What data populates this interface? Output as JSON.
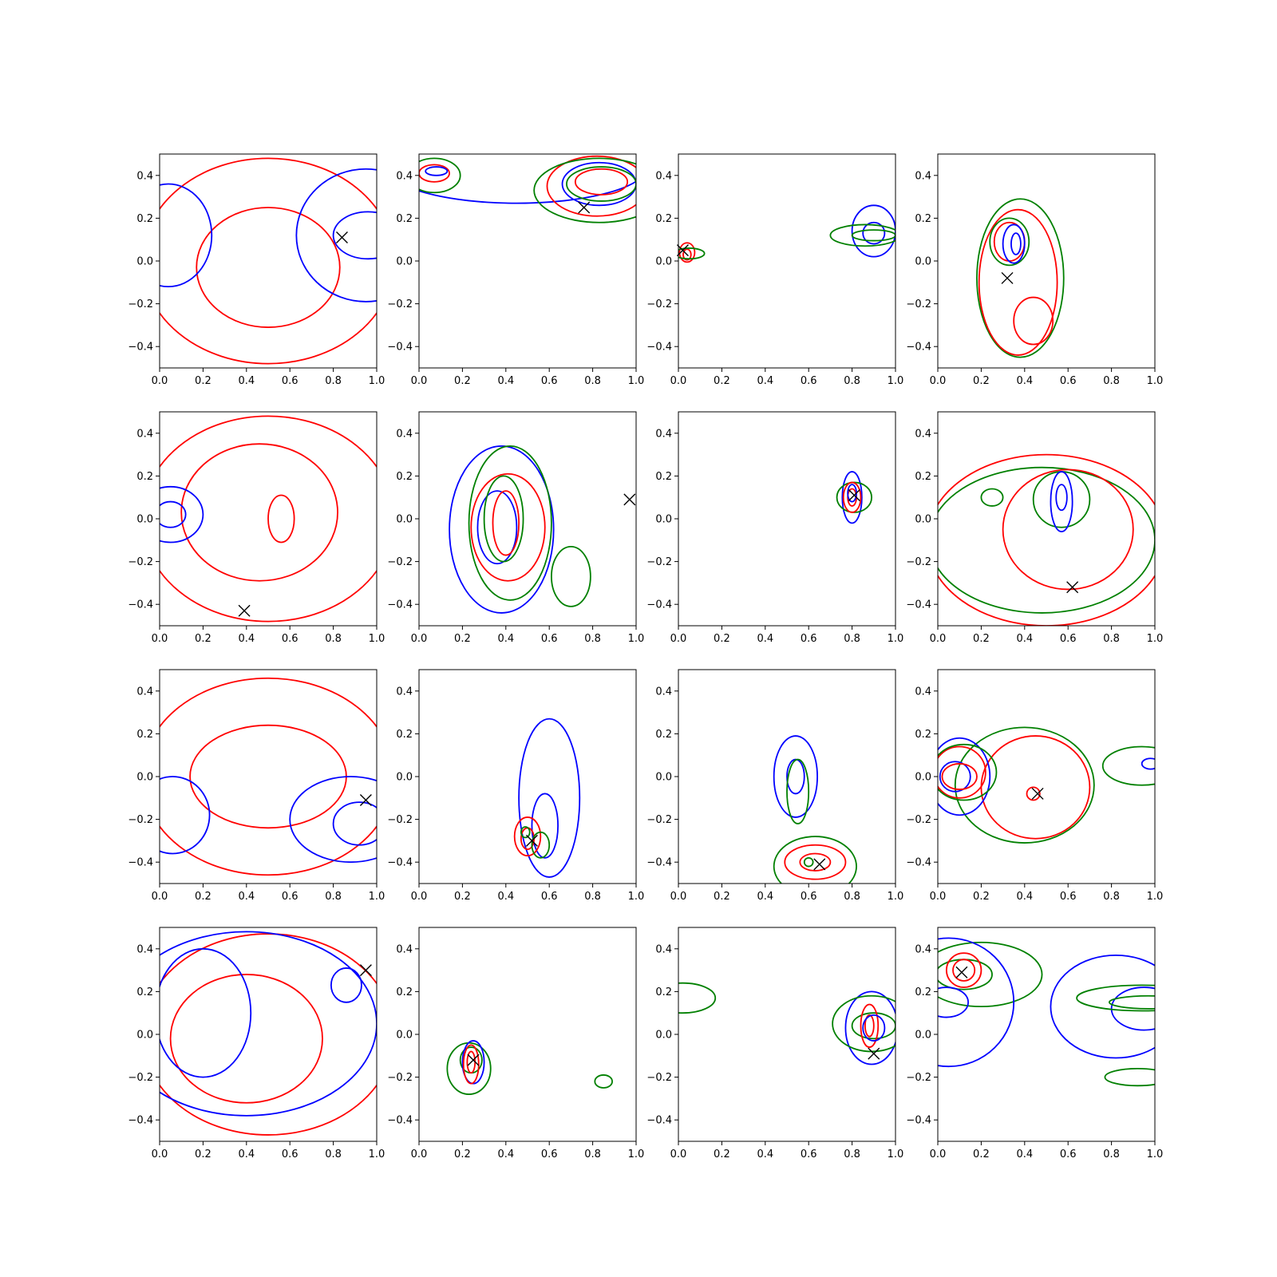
{
  "chart_data": {
    "type": "contour",
    "grid": {
      "rows": 4,
      "cols": 4
    },
    "xlim": [
      0.0,
      1.0
    ],
    "ylim": [
      -0.5,
      0.5
    ],
    "xticks": [
      "0.0",
      "0.2",
      "0.4",
      "0.6",
      "0.8",
      "1.0"
    ],
    "yticks": [
      "−0.4",
      "−0.2",
      "0.0",
      "0.2",
      "0.4"
    ],
    "xtick_values": [
      0.0,
      0.2,
      0.4,
      0.6,
      0.8,
      1.0
    ],
    "ytick_values": [
      -0.4,
      -0.2,
      0.0,
      0.2,
      0.4
    ],
    "colors": {
      "red": "#ff0000",
      "blue": "#0000ff",
      "green": "#008000",
      "marker": "#000000"
    },
    "panels": [
      {
        "marker": [
          0.84,
          0.11
        ],
        "contours": [
          {
            "color": "red",
            "cx": 0.5,
            "cy": 0.0,
            "rx": 0.58,
            "ry": 0.48
          },
          {
            "color": "red",
            "cx": 0.5,
            "cy": -0.03,
            "rx": 0.33,
            "ry": 0.28
          },
          {
            "color": "blue",
            "cx": 0.04,
            "cy": 0.12,
            "rx": 0.2,
            "ry": 0.24
          },
          {
            "color": "blue",
            "cx": 0.95,
            "cy": 0.12,
            "rx": 0.32,
            "ry": 0.31
          },
          {
            "color": "blue",
            "cx": 0.96,
            "cy": 0.12,
            "rx": 0.16,
            "ry": 0.11
          }
        ]
      },
      {
        "marker": [
          0.76,
          0.25
        ],
        "contours": [
          {
            "color": "blue",
            "cx": 0.45,
            "cy": 0.44,
            "rx": 0.6,
            "ry": 0.17
          },
          {
            "color": "blue",
            "cx": 0.83,
            "cy": 0.36,
            "rx": 0.17,
            "ry": 0.1
          },
          {
            "color": "red",
            "cx": 0.82,
            "cy": 0.35,
            "rx": 0.23,
            "ry": 0.14
          },
          {
            "color": "red",
            "cx": 0.84,
            "cy": 0.37,
            "rx": 0.12,
            "ry": 0.06
          },
          {
            "color": "green",
            "cx": 0.83,
            "cy": 0.33,
            "rx": 0.3,
            "ry": 0.15
          },
          {
            "color": "green",
            "cx": 0.84,
            "cy": 0.36,
            "rx": 0.16,
            "ry": 0.08
          },
          {
            "color": "green",
            "cx": 0.07,
            "cy": 0.4,
            "rx": 0.12,
            "ry": 0.08
          },
          {
            "color": "red",
            "cx": 0.07,
            "cy": 0.41,
            "rx": 0.07,
            "ry": 0.04
          },
          {
            "color": "blue",
            "cx": 0.08,
            "cy": 0.42,
            "rx": 0.05,
            "ry": 0.02
          }
        ]
      },
      {
        "marker": [
          0.02,
          0.05
        ],
        "contours": [
          {
            "color": "red",
            "cx": 0.04,
            "cy": 0.04,
            "rx": 0.035,
            "ry": 0.045
          },
          {
            "color": "red",
            "cx": 0.04,
            "cy": 0.03,
            "rx": 0.018,
            "ry": 0.025
          },
          {
            "color": "green",
            "cx": 0.05,
            "cy": 0.035,
            "rx": 0.07,
            "ry": 0.025
          },
          {
            "color": "blue",
            "cx": 0.9,
            "cy": 0.14,
            "rx": 0.1,
            "ry": 0.12
          },
          {
            "color": "blue",
            "cx": 0.9,
            "cy": 0.13,
            "rx": 0.05,
            "ry": 0.05
          },
          {
            "color": "green",
            "cx": 0.86,
            "cy": 0.12,
            "rx": 0.16,
            "ry": 0.05
          },
          {
            "color": "green",
            "cx": 0.9,
            "cy": 0.12,
            "rx": 0.1,
            "ry": 0.025
          }
        ]
      },
      {
        "marker": [
          0.32,
          -0.08
        ],
        "contours": [
          {
            "color": "green",
            "cx": 0.38,
            "cy": -0.08,
            "rx": 0.2,
            "ry": 0.37
          },
          {
            "color": "red",
            "cx": 0.37,
            "cy": -0.1,
            "rx": 0.18,
            "ry": 0.34
          },
          {
            "color": "green",
            "cx": 0.33,
            "cy": 0.09,
            "rx": 0.09,
            "ry": 0.11
          },
          {
            "color": "red",
            "cx": 0.33,
            "cy": 0.09,
            "rx": 0.07,
            "ry": 0.09
          },
          {
            "color": "blue",
            "cx": 0.35,
            "cy": 0.08,
            "rx": 0.05,
            "ry": 0.09
          },
          {
            "color": "blue",
            "cx": 0.36,
            "cy": 0.08,
            "rx": 0.022,
            "ry": 0.05
          },
          {
            "color": "red",
            "cx": 0.44,
            "cy": -0.28,
            "rx": 0.09,
            "ry": 0.11
          }
        ]
      },
      {
        "marker": [
          0.39,
          -0.43
        ],
        "contours": [
          {
            "color": "red",
            "cx": 0.5,
            "cy": 0.0,
            "rx": 0.58,
            "ry": 0.48
          },
          {
            "color": "red",
            "cx": 0.46,
            "cy": 0.03,
            "rx": 0.36,
            "ry": 0.32
          },
          {
            "color": "red",
            "cx": 0.56,
            "cy": 0.0,
            "rx": 0.06,
            "ry": 0.11
          },
          {
            "color": "blue",
            "cx": 0.05,
            "cy": 0.02,
            "rx": 0.15,
            "ry": 0.13
          },
          {
            "color": "blue",
            "cx": 0.05,
            "cy": 0.02,
            "rx": 0.07,
            "ry": 0.06
          }
        ]
      },
      {
        "marker": [
          0.97,
          0.09
        ],
        "contours": [
          {
            "color": "blue",
            "cx": 0.38,
            "cy": -0.05,
            "rx": 0.24,
            "ry": 0.39
          },
          {
            "color": "blue",
            "cx": 0.36,
            "cy": -0.04,
            "rx": 0.09,
            "ry": 0.17
          },
          {
            "color": "green",
            "cx": 0.42,
            "cy": -0.02,
            "rx": 0.19,
            "ry": 0.36
          },
          {
            "color": "green",
            "cx": 0.39,
            "cy": 0.0,
            "rx": 0.09,
            "ry": 0.2
          },
          {
            "color": "red",
            "cx": 0.41,
            "cy": -0.04,
            "rx": 0.17,
            "ry": 0.25
          },
          {
            "color": "red",
            "cx": 0.4,
            "cy": -0.02,
            "rx": 0.06,
            "ry": 0.15
          },
          {
            "color": "green",
            "cx": 0.7,
            "cy": -0.27,
            "rx": 0.09,
            "ry": 0.14
          }
        ]
      },
      {
        "marker": [
          0.81,
          0.11
        ],
        "contours": [
          {
            "color": "blue",
            "cx": 0.8,
            "cy": 0.1,
            "rx": 0.045,
            "ry": 0.12
          },
          {
            "color": "green",
            "cx": 0.81,
            "cy": 0.1,
            "rx": 0.08,
            "ry": 0.07
          },
          {
            "color": "red",
            "cx": 0.8,
            "cy": 0.1,
            "rx": 0.04,
            "ry": 0.07
          },
          {
            "color": "red",
            "cx": 0.8,
            "cy": 0.1,
            "rx": 0.02,
            "ry": 0.04
          },
          {
            "color": "blue",
            "cx": 0.8,
            "cy": 0.12,
            "rx": 0.02,
            "ry": 0.04
          }
        ]
      },
      {
        "marker": [
          0.62,
          -0.32
        ],
        "contours": [
          {
            "color": "red",
            "cx": 0.5,
            "cy": -0.1,
            "rx": 0.55,
            "ry": 0.4
          },
          {
            "color": "green",
            "cx": 0.48,
            "cy": -0.1,
            "rx": 0.52,
            "ry": 0.34
          },
          {
            "color": "red",
            "cx": 0.6,
            "cy": -0.05,
            "rx": 0.3,
            "ry": 0.28
          },
          {
            "color": "green",
            "cx": 0.57,
            "cy": 0.09,
            "rx": 0.13,
            "ry": 0.13
          },
          {
            "color": "blue",
            "cx": 0.57,
            "cy": 0.08,
            "rx": 0.05,
            "ry": 0.14
          },
          {
            "color": "blue",
            "cx": 0.57,
            "cy": 0.1,
            "rx": 0.025,
            "ry": 0.06
          },
          {
            "color": "green",
            "cx": 0.25,
            "cy": 0.1,
            "rx": 0.05,
            "ry": 0.04
          }
        ]
      },
      {
        "marker": [
          0.95,
          -0.11
        ],
        "contours": [
          {
            "color": "red",
            "cx": 0.5,
            "cy": 0.0,
            "rx": 0.58,
            "ry": 0.46
          },
          {
            "color": "red",
            "cx": 0.5,
            "cy": 0.0,
            "rx": 0.36,
            "ry": 0.24
          },
          {
            "color": "blue",
            "cx": 0.06,
            "cy": -0.18,
            "rx": 0.17,
            "ry": 0.18
          },
          {
            "color": "blue",
            "cx": 0.88,
            "cy": -0.2,
            "rx": 0.28,
            "ry": 0.2
          },
          {
            "color": "blue",
            "cx": 0.92,
            "cy": -0.22,
            "rx": 0.12,
            "ry": 0.1
          }
        ]
      },
      {
        "marker": [
          0.52,
          -0.3
        ],
        "contours": [
          {
            "color": "blue",
            "cx": 0.6,
            "cy": -0.1,
            "rx": 0.14,
            "ry": 0.37
          },
          {
            "color": "blue",
            "cx": 0.58,
            "cy": -0.23,
            "rx": 0.06,
            "ry": 0.15
          },
          {
            "color": "red",
            "cx": 0.5,
            "cy": -0.28,
            "rx": 0.06,
            "ry": 0.09
          },
          {
            "color": "red",
            "cx": 0.5,
            "cy": -0.29,
            "rx": 0.03,
            "ry": 0.05
          },
          {
            "color": "green",
            "cx": 0.56,
            "cy": -0.32,
            "rx": 0.04,
            "ry": 0.06
          },
          {
            "color": "green",
            "cx": 0.49,
            "cy": -0.26,
            "rx": 0.02,
            "ry": 0.025
          }
        ]
      },
      {
        "marker": [
          0.65,
          -0.41
        ],
        "contours": [
          {
            "color": "blue",
            "cx": 0.54,
            "cy": 0.0,
            "rx": 0.1,
            "ry": 0.19
          },
          {
            "color": "blue",
            "cx": 0.54,
            "cy": 0.0,
            "rx": 0.04,
            "ry": 0.08
          },
          {
            "color": "green",
            "cx": 0.55,
            "cy": -0.07,
            "rx": 0.05,
            "ry": 0.15
          },
          {
            "color": "red",
            "cx": 0.63,
            "cy": -0.4,
            "rx": 0.14,
            "ry": 0.08
          },
          {
            "color": "red",
            "cx": 0.63,
            "cy": -0.4,
            "rx": 0.07,
            "ry": 0.04
          },
          {
            "color": "green",
            "cx": 0.63,
            "cy": -0.42,
            "rx": 0.19,
            "ry": 0.14
          },
          {
            "color": "green",
            "cx": 0.6,
            "cy": -0.4,
            "rx": 0.02,
            "ry": 0.02
          }
        ]
      },
      {
        "marker": [
          0.46,
          -0.08
        ],
        "contours": [
          {
            "color": "green",
            "cx": 0.4,
            "cy": -0.04,
            "rx": 0.32,
            "ry": 0.27
          },
          {
            "color": "red",
            "cx": 0.45,
            "cy": -0.05,
            "rx": 0.25,
            "ry": 0.24
          },
          {
            "color": "red",
            "cx": 0.44,
            "cy": -0.08,
            "rx": 0.03,
            "ry": 0.03
          },
          {
            "color": "blue",
            "cx": 0.1,
            "cy": 0.0,
            "rx": 0.14,
            "ry": 0.18
          },
          {
            "color": "blue",
            "cx": 0.08,
            "cy": 0.0,
            "rx": 0.07,
            "ry": 0.07
          },
          {
            "color": "red",
            "cx": 0.1,
            "cy": 0.02,
            "rx": 0.12,
            "ry": 0.12
          },
          {
            "color": "red",
            "cx": 0.1,
            "cy": 0.0,
            "rx": 0.08,
            "ry": 0.06
          },
          {
            "color": "green",
            "cx": 0.12,
            "cy": 0.02,
            "rx": 0.15,
            "ry": 0.13
          },
          {
            "color": "green",
            "cx": 0.94,
            "cy": 0.05,
            "rx": 0.18,
            "ry": 0.09
          },
          {
            "color": "blue",
            "cx": 0.98,
            "cy": 0.06,
            "rx": 0.04,
            "ry": 0.025
          }
        ]
      },
      {
        "marker": [
          0.95,
          0.3
        ],
        "contours": [
          {
            "color": "red",
            "cx": 0.5,
            "cy": 0.0,
            "rx": 0.58,
            "ry": 0.47
          },
          {
            "color": "red",
            "cx": 0.4,
            "cy": -0.02,
            "rx": 0.35,
            "ry": 0.3
          },
          {
            "color": "blue",
            "cx": 0.4,
            "cy": 0.05,
            "rx": 0.6,
            "ry": 0.43
          },
          {
            "color": "blue",
            "cx": 0.2,
            "cy": 0.1,
            "rx": 0.22,
            "ry": 0.3
          },
          {
            "color": "blue",
            "cx": 0.86,
            "cy": 0.23,
            "rx": 0.07,
            "ry": 0.08
          }
        ]
      },
      {
        "marker": [
          0.25,
          -0.12
        ],
        "contours": [
          {
            "color": "green",
            "cx": 0.23,
            "cy": -0.16,
            "rx": 0.1,
            "ry": 0.12
          },
          {
            "color": "green",
            "cx": 0.24,
            "cy": -0.12,
            "rx": 0.05,
            "ry": 0.06
          },
          {
            "color": "blue",
            "cx": 0.25,
            "cy": -0.13,
            "rx": 0.05,
            "ry": 0.1
          },
          {
            "color": "red",
            "cx": 0.24,
            "cy": -0.14,
            "rx": 0.035,
            "ry": 0.09
          },
          {
            "color": "red",
            "cx": 0.24,
            "cy": -0.13,
            "rx": 0.018,
            "ry": 0.05
          },
          {
            "color": "green",
            "cx": 0.85,
            "cy": -0.22,
            "rx": 0.04,
            "ry": 0.03
          }
        ]
      },
      {
        "marker": [
          0.9,
          -0.09
        ],
        "contours": [
          {
            "color": "green",
            "cx": 0.02,
            "cy": 0.17,
            "rx": 0.15,
            "ry": 0.07
          },
          {
            "color": "blue",
            "cx": 0.89,
            "cy": 0.03,
            "rx": 0.12,
            "ry": 0.17
          },
          {
            "color": "green",
            "cx": 0.89,
            "cy": 0.05,
            "rx": 0.18,
            "ry": 0.13
          },
          {
            "color": "green",
            "cx": 0.9,
            "cy": 0.04,
            "rx": 0.1,
            "ry": 0.06
          },
          {
            "color": "red",
            "cx": 0.88,
            "cy": 0.04,
            "rx": 0.04,
            "ry": 0.1
          },
          {
            "color": "red",
            "cx": 0.88,
            "cy": 0.04,
            "rx": 0.02,
            "ry": 0.05
          },
          {
            "color": "blue",
            "cx": 0.9,
            "cy": 0.03,
            "rx": 0.05,
            "ry": 0.06
          }
        ]
      },
      {
        "marker": [
          0.11,
          0.29
        ],
        "contours": [
          {
            "color": "green",
            "cx": 0.2,
            "cy": 0.28,
            "rx": 0.28,
            "ry": 0.15
          },
          {
            "color": "green",
            "cx": 0.12,
            "cy": 0.28,
            "rx": 0.13,
            "ry": 0.07
          },
          {
            "color": "red",
            "cx": 0.12,
            "cy": 0.3,
            "rx": 0.08,
            "ry": 0.08
          },
          {
            "color": "red",
            "cx": 0.12,
            "cy": 0.3,
            "rx": 0.05,
            "ry": 0.05
          },
          {
            "color": "blue",
            "cx": 0.04,
            "cy": 0.15,
            "rx": 0.1,
            "ry": 0.07
          },
          {
            "color": "blue",
            "cx": 0.05,
            "cy": 0.15,
            "rx": 0.3,
            "ry": 0.3
          },
          {
            "color": "blue",
            "cx": 0.82,
            "cy": 0.13,
            "rx": 0.3,
            "ry": 0.24
          },
          {
            "color": "blue",
            "cx": 0.95,
            "cy": 0.12,
            "rx": 0.15,
            "ry": 0.1
          },
          {
            "color": "green",
            "cx": 0.94,
            "cy": 0.17,
            "rx": 0.3,
            "ry": 0.06
          },
          {
            "color": "green",
            "cx": 0.97,
            "cy": 0.15,
            "rx": 0.18,
            "ry": 0.03
          },
          {
            "color": "green",
            "cx": 0.92,
            "cy": -0.2,
            "rx": 0.15,
            "ry": 0.04
          }
        ]
      }
    ]
  }
}
